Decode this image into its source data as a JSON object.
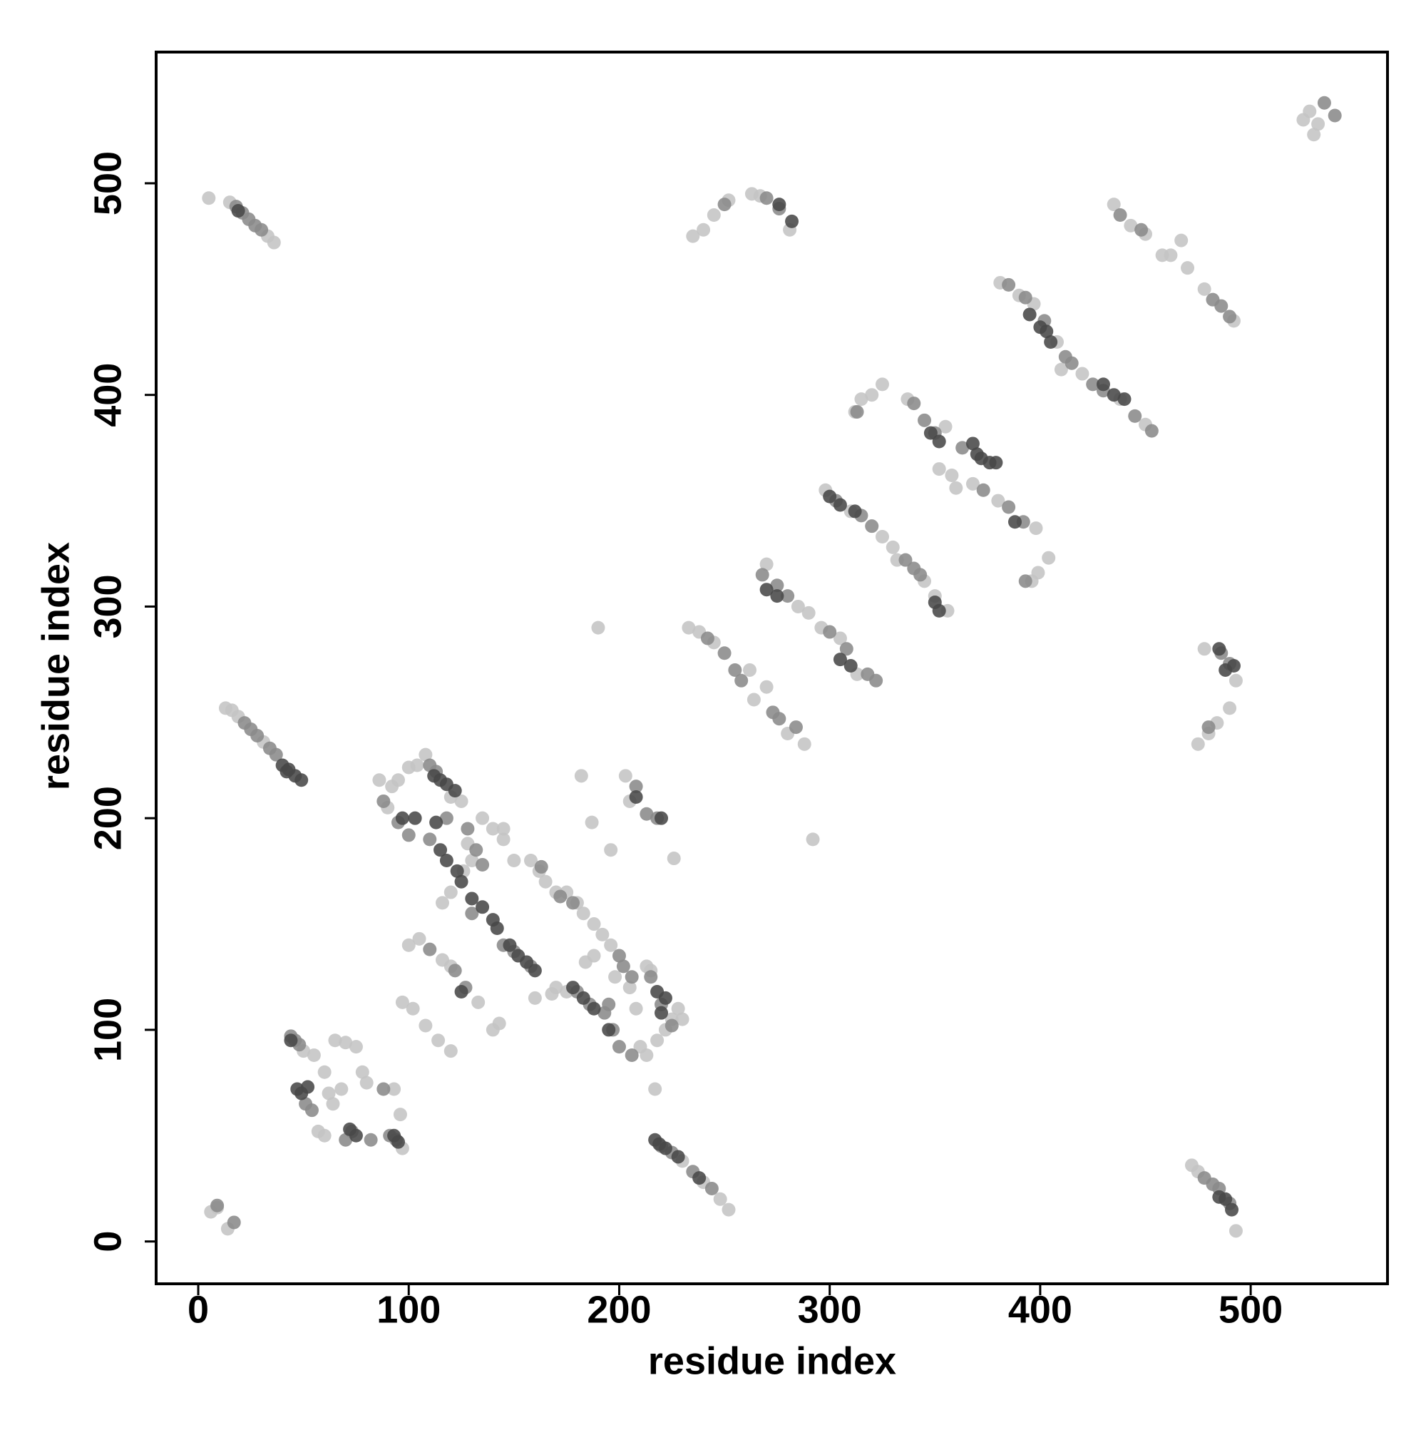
{
  "chart_data": {
    "type": "scatter",
    "xlabel": "residue index",
    "ylabel": "residue index",
    "xlim": [
      -20,
      565
    ],
    "ylim": [
      -20,
      562
    ],
    "xticks": [
      0,
      100,
      200,
      300,
      400,
      500
    ],
    "yticks": [
      0,
      100,
      200,
      300,
      400,
      500
    ],
    "grid": false,
    "series": [
      {
        "color": "#c4c4c4",
        "x": [
          5,
          15,
          33,
          36,
          13,
          16,
          19,
          31,
          6,
          9,
          14,
          50,
          55,
          60,
          62,
          65,
          70,
          75,
          78,
          80,
          57,
          60,
          64,
          68,
          93,
          96,
          97,
          230,
          240,
          248,
          252,
          472,
          475,
          493,
          525,
          528,
          532,
          530,
          478,
          475,
          480,
          490,
          493,
          484,
          233,
          238,
          245,
          262,
          270,
          264,
          280,
          288,
          270,
          285,
          290,
          296,
          305,
          313,
          298,
          310,
          325,
          330,
          332,
          345,
          350,
          356,
          337,
          355,
          352,
          358,
          360,
          368,
          380,
          398,
          381,
          390,
          397,
          408,
          410,
          420,
          438,
          450,
          435,
          443,
          450,
          458,
          462,
          467,
          470,
          478,
          492,
          235,
          240,
          245,
          252,
          263,
          267,
          281,
          312,
          315,
          320,
          325,
          396,
          399,
          404,
          90,
          92,
          95,
          100,
          104,
          108,
          86,
          120,
          125,
          135,
          140,
          145,
          130,
          126,
          120,
          116,
          100,
          105,
          116,
          120,
          133,
          140,
          143,
          97,
          102,
          108,
          114,
          120,
          158,
          162,
          165,
          170,
          175,
          180,
          183,
          188,
          192,
          196,
          198,
          205,
          208,
          210,
          213,
          218,
          222,
          225,
          228,
          215,
          213,
          170,
          168,
          160,
          182,
          187,
          196,
          190,
          292,
          203,
          205,
          217,
          226,
          230,
          188,
          184,
          175,
          145,
          150,
          128
        ],
        "y": [
          493,
          491,
          475,
          472,
          252,
          251,
          248,
          236,
          14,
          16,
          6,
          90,
          88,
          80,
          70,
          95,
          94,
          92,
          80,
          75,
          52,
          50,
          65,
          72,
          72,
          60,
          44,
          38,
          28,
          20,
          15,
          36,
          33,
          5,
          530,
          534,
          528,
          523,
          280,
          235,
          240,
          252,
          265,
          245,
          290,
          288,
          283,
          270,
          262,
          256,
          240,
          235,
          320,
          300,
          297,
          290,
          285,
          268,
          355,
          345,
          333,
          328,
          322,
          312,
          305,
          298,
          398,
          385,
          365,
          362,
          356,
          358,
          350,
          337,
          453,
          447,
          443,
          425,
          412,
          410,
          398,
          386,
          490,
          480,
          476,
          466,
          466,
          473,
          460,
          450,
          435,
          475,
          478,
          485,
          492,
          495,
          494,
          478,
          392,
          398,
          400,
          405,
          312,
          316,
          323,
          205,
          215,
          218,
          224,
          225,
          230,
          218,
          210,
          208,
          200,
          195,
          190,
          180,
          175,
          165,
          160,
          140,
          143,
          133,
          130,
          113,
          100,
          103,
          113,
          110,
          102,
          95,
          90,
          180,
          175,
          170,
          165,
          165,
          160,
          155,
          150,
          145,
          140,
          125,
          120,
          110,
          92,
          88,
          95,
          100,
          105,
          110,
          128,
          130,
          120,
          117,
          115,
          220,
          198,
          185,
          290,
          190,
          220,
          208,
          72,
          181,
          105,
          135,
          132,
          118,
          195,
          180,
          188
        ]
      },
      {
        "color": "#8a8a8a",
        "x": [
          18,
          21,
          24,
          27,
          30,
          22,
          25,
          28,
          34,
          37,
          17,
          9,
          44,
          46,
          48,
          51,
          54,
          70,
          73,
          82,
          88,
          91,
          94,
          220,
          225,
          235,
          244,
          478,
          482,
          485,
          490,
          535,
          540,
          486,
          490,
          480,
          242,
          250,
          255,
          258,
          273,
          276,
          284,
          268,
          275,
          280,
          300,
          308,
          318,
          322,
          303,
          315,
          320,
          336,
          340,
          343,
          340,
          345,
          350,
          363,
          373,
          385,
          392,
          385,
          393,
          402,
          412,
          415,
          425,
          430,
          445,
          453,
          438,
          448,
          482,
          486,
          490,
          250,
          270,
          276,
          313,
          393,
          110,
          113,
          88,
          95,
          100,
          110,
          128,
          132,
          135,
          118,
          130,
          145,
          150,
          158,
          122,
          110,
          127,
          163,
          172,
          180,
          186,
          193,
          200,
          202,
          206,
          215,
          220,
          225,
          200,
          206,
          197,
          208,
          213,
          218,
          195,
          178
        ],
        "y": [
          489,
          486,
          483,
          480,
          478,
          245,
          242,
          239,
          233,
          230,
          9,
          17,
          97,
          95,
          93,
          65,
          62,
          48,
          52,
          48,
          72,
          50,
          48,
          45,
          42,
          33,
          25,
          30,
          27,
          25,
          18,
          538,
          532,
          278,
          273,
          243,
          285,
          278,
          270,
          265,
          250,
          247,
          243,
          315,
          310,
          305,
          288,
          280,
          268,
          265,
          350,
          343,
          338,
          322,
          318,
          315,
          396,
          388,
          382,
          375,
          355,
          347,
          340,
          452,
          446,
          435,
          418,
          415,
          405,
          402,
          390,
          383,
          485,
          478,
          445,
          442,
          437,
          490,
          493,
          488,
          392,
          312,
          225,
          222,
          208,
          198,
          192,
          190,
          195,
          185,
          178,
          200,
          155,
          140,
          137,
          130,
          128,
          138,
          120,
          177,
          163,
          118,
          112,
          108,
          135,
          130,
          125,
          125,
          112,
          102,
          92,
          88,
          100,
          215,
          202,
          200,
          112,
          160
        ]
      },
      {
        "color": "#484848",
        "x": [
          19,
          40,
          43,
          46,
          49,
          42,
          47,
          49,
          52,
          72,
          75,
          93,
          95,
          44,
          217,
          219,
          222,
          228,
          238,
          485,
          488,
          491,
          485,
          492,
          488,
          270,
          275,
          305,
          310,
          300,
          305,
          312,
          350,
          352,
          348,
          352,
          368,
          370,
          372,
          376,
          379,
          388,
          395,
          400,
          403,
          405,
          430,
          435,
          440,
          276,
          282,
          112,
          115,
          118,
          122,
          115,
          118,
          123,
          125,
          130,
          135,
          140,
          142,
          148,
          152,
          156,
          160,
          178,
          183,
          188,
          195,
          218,
          222,
          220,
          208,
          220,
          125,
          113,
          103,
          97
        ],
        "y": [
          487,
          225,
          223,
          220,
          218,
          222,
          72,
          70,
          73,
          53,
          50,
          50,
          47,
          95,
          48,
          46,
          44,
          40,
          30,
          21,
          20,
          15,
          280,
          272,
          270,
          308,
          305,
          275,
          272,
          352,
          348,
          345,
          302,
          298,
          382,
          378,
          377,
          372,
          370,
          368,
          368,
          340,
          438,
          432,
          430,
          425,
          405,
          400,
          398,
          490,
          482,
          220,
          218,
          216,
          213,
          185,
          180,
          175,
          170,
          162,
          158,
          152,
          148,
          140,
          135,
          132,
          128,
          120,
          115,
          110,
          100,
          118,
          115,
          108,
          210,
          200,
          118,
          198,
          200,
          200
        ]
      }
    ]
  }
}
